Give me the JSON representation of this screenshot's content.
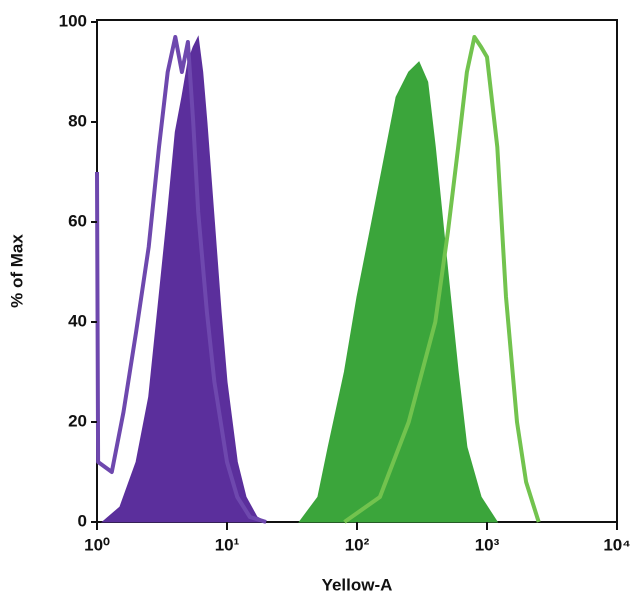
{
  "chart_data": {
    "type": "histogram-overlay",
    "x_label": "Yellow-A",
    "y_label": "% of Max",
    "xscale": "log",
    "xlim": [
      1,
      10000
    ],
    "xticks": [
      {
        "value": 1,
        "label": "10⁰"
      },
      {
        "value": 10,
        "label": "10¹"
      },
      {
        "value": 100,
        "label": "10²"
      },
      {
        "value": 1000,
        "label": "10³"
      },
      {
        "value": 10000,
        "label": "10⁴"
      }
    ],
    "ylim": [
      0,
      100
    ],
    "yticks": [
      0,
      20,
      40,
      60,
      80,
      100
    ],
    "series": [
      {
        "style": "filled",
        "color": "#5b2f9c",
        "x": [
          1.1,
          1.5,
          2,
          2.5,
          3,
          3.5,
          4,
          4.5,
          5,
          5.5,
          6,
          6.5,
          7,
          8,
          9,
          10,
          12,
          14,
          17,
          20
        ],
        "values": [
          0,
          3,
          12,
          25,
          45,
          62,
          78,
          85,
          92,
          95,
          97,
          90,
          80,
          60,
          42,
          28,
          12,
          5,
          1,
          0
        ]
      },
      {
        "style": "outline",
        "color": "#6e48ae",
        "x": [
          1,
          1.02,
          1.3,
          1.6,
          2,
          2.5,
          3,
          3.5,
          4,
          4.5,
          5,
          5.5,
          6,
          7,
          8,
          10,
          12,
          15,
          20
        ],
        "values": [
          70,
          12,
          10,
          22,
          38,
          55,
          75,
          90,
          97,
          90,
          96,
          80,
          62,
          42,
          28,
          12,
          5,
          1,
          0
        ]
      },
      {
        "style": "filled",
        "color": "#3ba53b",
        "x": [
          36,
          50,
          60,
          80,
          100,
          130,
          160,
          200,
          250,
          300,
          350,
          400,
          500,
          600,
          700,
          900,
          1200
        ],
        "values": [
          0,
          5,
          15,
          30,
          45,
          60,
          72,
          85,
          90,
          92,
          88,
          75,
          50,
          30,
          15,
          5,
          0
        ]
      },
      {
        "style": "outline",
        "color": "#72c34e",
        "x": [
          80,
          150,
          250,
          400,
          500,
          600,
          700,
          800,
          900,
          1000,
          1200,
          1400,
          1700,
          2000,
          2500
        ],
        "values": [
          0,
          5,
          20,
          40,
          58,
          75,
          90,
          97,
          95,
          93,
          75,
          45,
          20,
          8,
          0
        ]
      }
    ]
  }
}
